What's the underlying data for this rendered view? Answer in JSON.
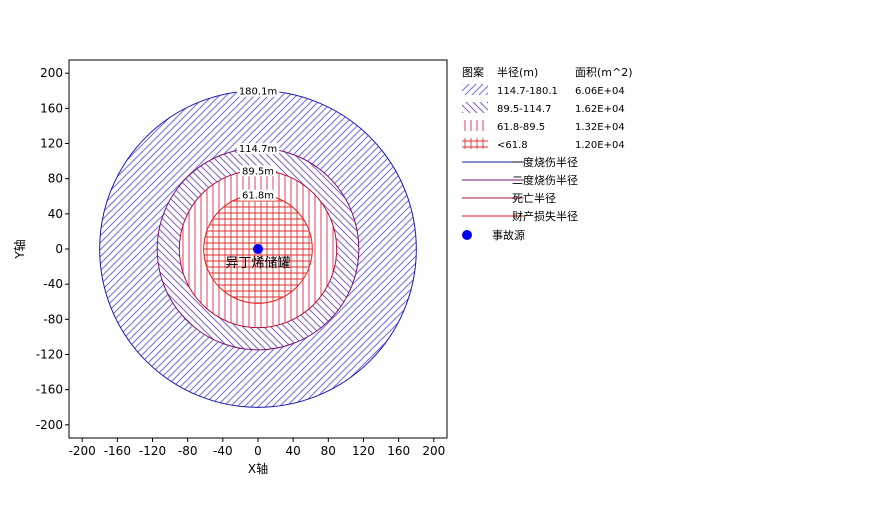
{
  "chart_data": {
    "type": "area",
    "xlabel": "X轴",
    "ylabel": "Y轴",
    "xlim": [
      -215,
      215
    ],
    "ylim": [
      -215,
      215
    ],
    "x_ticks": [
      -200,
      -160,
      -120,
      -80,
      -40,
      0,
      40,
      80,
      120,
      160,
      200
    ],
    "y_ticks": [
      -200,
      -160,
      -120,
      -80,
      -40,
      0,
      40,
      80,
      120,
      160,
      200
    ],
    "grid": false,
    "source": {
      "x": 0,
      "y": 0,
      "label": "异丁烯储罐"
    },
    "radii": [
      {
        "r": 180.1,
        "label": "180.1m",
        "color": "#1a1ab0"
      },
      {
        "r": 114.7,
        "label": "114.7m",
        "color": "#7a1070"
      },
      {
        "r": 89.5,
        "label": "89.5m",
        "color": "#b0103a"
      },
      {
        "r": 61.8,
        "label": "61.8m",
        "color": "#e02020"
      }
    ],
    "zones": [
      {
        "range": "114.7-180.1",
        "area": "6.06E+04",
        "r_outer": 180.1,
        "r_inner": 114.7,
        "pattern": "hatch-forward",
        "color": "#7070e0"
      },
      {
        "range": "89.5-114.7",
        "area": "1.62E+04",
        "r_outer": 114.7,
        "r_inner": 89.5,
        "pattern": "hatch-back",
        "color": "#8060c0"
      },
      {
        "range": "61.8-89.5",
        "area": "1.32E+04",
        "r_outer": 89.5,
        "r_inner": 61.8,
        "pattern": "vertical",
        "color": "#e04060"
      },
      {
        "range": "<61.8",
        "area": "1.20E+04",
        "r_outer": 61.8,
        "r_inner": 0,
        "pattern": "grid",
        "color": "#e03030"
      }
    ],
    "legend": {
      "placement": "right",
      "header": {
        "pattern": "图案",
        "radius": "半径(m)",
        "area": "面积(m^2)"
      },
      "lines": [
        {
          "label": "一度烧伤半径",
          "color": "#1a1ab0"
        },
        {
          "label": "二度烧伤半径",
          "color": "#7a1070"
        },
        {
          "label": "死亡半径",
          "color": "#b0103a"
        },
        {
          "label": "财产损失半径",
          "color": "#e02020"
        }
      ],
      "source_entry": {
        "label": "事故源",
        "color": "#0000ee"
      }
    }
  }
}
